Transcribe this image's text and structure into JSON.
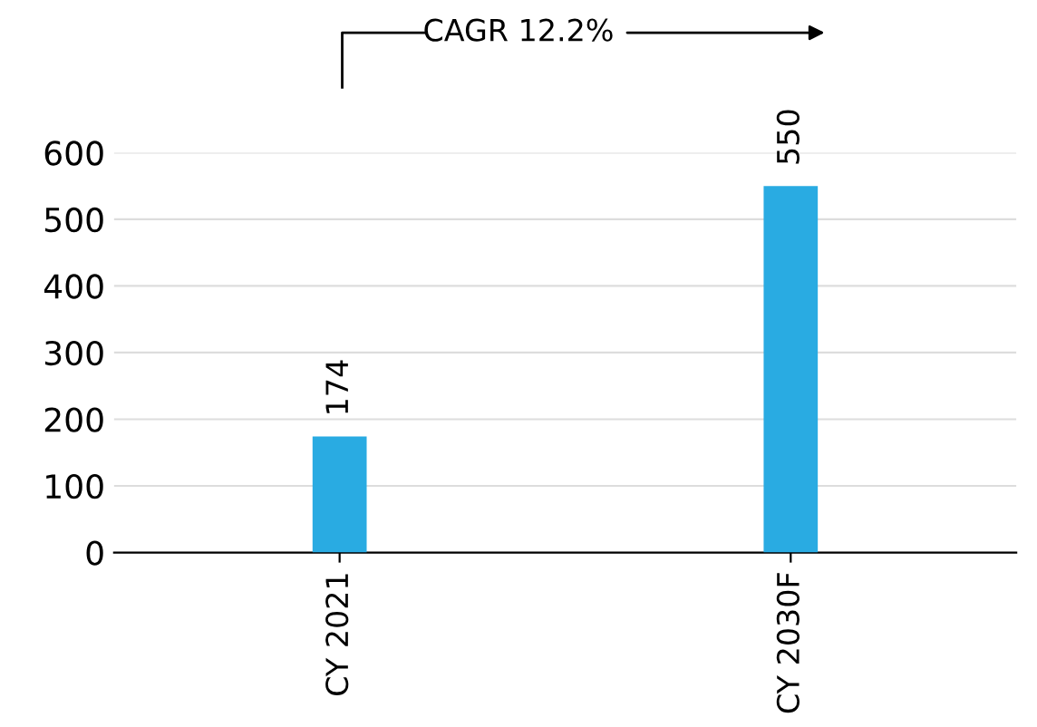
{
  "chart_data": {
    "type": "bar",
    "categories": [
      "CY 2021",
      "CY 2030F"
    ],
    "values": [
      174,
      550
    ],
    "color": "#29abe2",
    "data_labels": true,
    "ylim": [
      0,
      600
    ],
    "yticks": [
      0,
      100,
      200,
      300,
      400,
      500,
      600
    ],
    "grid": "y",
    "annotations": [
      "CAGR 12.2%"
    ]
  }
}
